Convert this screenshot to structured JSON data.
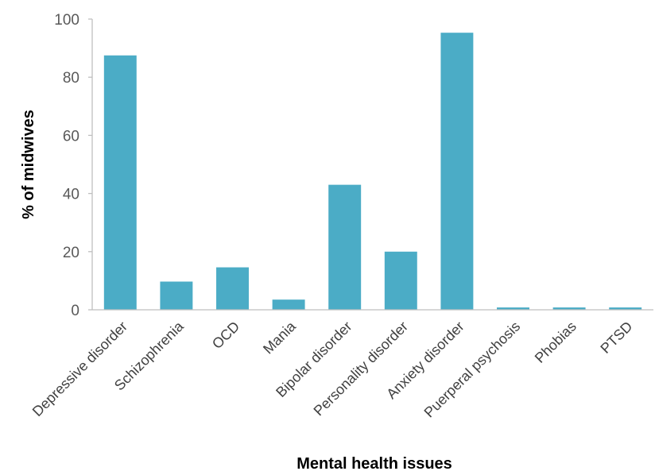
{
  "chart_data": {
    "type": "bar",
    "title": "",
    "xlabel": "Mental health issues",
    "ylabel": "% of midwives",
    "ylim": [
      0,
      100
    ],
    "yticks": [
      0,
      20,
      40,
      60,
      80,
      100
    ],
    "ytick_labels": [
      "0",
      "20",
      "40",
      "60",
      "80",
      "100"
    ],
    "grid": false,
    "legend": "none",
    "categories": [
      "Depressive disorder",
      "Schizophrenia",
      "OCD",
      "Mania",
      "Bipolar disorder",
      "Personality disorder",
      "Anxiety disorder",
      "Puerperal psychosis",
      "Phobias",
      "PTSD"
    ],
    "values": [
      87.5,
      9.7,
      14.6,
      3.5,
      43,
      20,
      95.3,
      0.8,
      0.8,
      0.8
    ],
    "bar_color": "#4bacc6",
    "axis_color": "#bfbfbf"
  }
}
